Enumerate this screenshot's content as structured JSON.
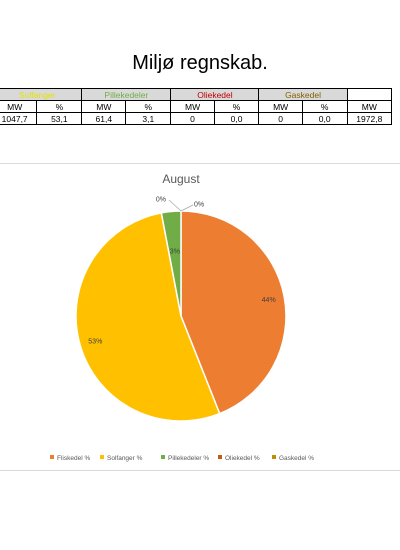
{
  "header": {
    "title": "Miljø regnskab."
  },
  "table": {
    "groups": [
      {
        "label": "Solfanger",
        "color": "#e3e300"
      },
      {
        "label": "Pillekedeler",
        "color": "#70ad47"
      },
      {
        "label": "Oliekedel",
        "color": "#c00000"
      },
      {
        "label": "Gaskedel",
        "color": "#806000"
      },
      {
        "label": "",
        "color": "#000000"
      }
    ],
    "units": [
      "MW",
      "%",
      "MW",
      "%",
      "MW",
      "%",
      "MW",
      "%",
      "MW"
    ],
    "values": [
      "1047,7",
      "53,1",
      "61,4",
      "3,1",
      "0",
      "0,0",
      "0",
      "0,0",
      "1972,8"
    ]
  },
  "chart_data": {
    "type": "pie",
    "title": "August",
    "categories": [
      "Fliskedel %",
      "Solfanger %",
      "Pillekedeler %",
      "Oliekedel %",
      "Gaskedel %"
    ],
    "values": [
      44,
      53,
      3,
      0,
      0
    ],
    "data_labels": [
      "44%",
      "53%",
      "3%",
      "0%",
      "0%"
    ],
    "colors": [
      "#ed7d31",
      "#ffc000",
      "#70ad47",
      "#c55a11",
      "#bf8f00"
    ],
    "legend_position": "bottom"
  }
}
